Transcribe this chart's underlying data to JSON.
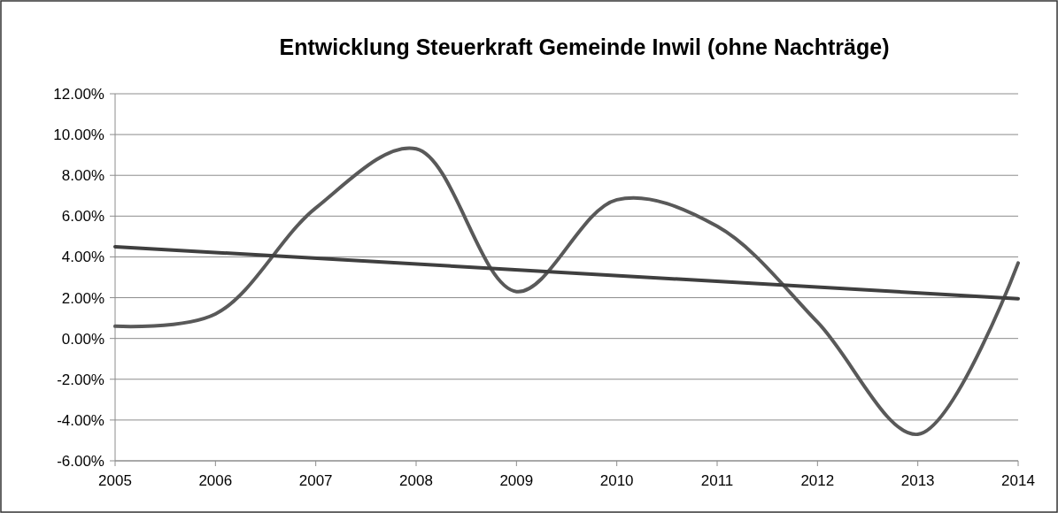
{
  "chart_data": {
    "type": "line",
    "title": "Entwicklung Steuerkraft Gemeinde Inwil (ohne Nachträge)",
    "x": [
      2005,
      2006,
      2007,
      2008,
      2009,
      2010,
      2011,
      2012,
      2013,
      2014
    ],
    "series": [
      {
        "color": "#595959",
        "values": [
          0.6,
          1.2,
          6.4,
          9.3,
          2.3,
          6.8,
          5.5,
          0.8,
          -4.7,
          3.7
        ]
      },
      {
        "type": "line",
        "color": "#3f3f3f",
        "x": [
          2005,
          2014
        ],
        "values": [
          4.5,
          1.95
        ]
      }
    ],
    "xlim": [
      2005,
      2014
    ],
    "xticks": [
      2005,
      2006,
      2007,
      2008,
      2009,
      2010,
      2011,
      2012,
      2013,
      2014
    ],
    "ylim": [
      -6,
      12
    ],
    "yticks": [
      {
        "value": -6,
        "label": "-6.00%"
      },
      {
        "value": -4,
        "label": "-4.00%"
      },
      {
        "value": -2,
        "label": "-2.00%"
      },
      {
        "value": 0,
        "label": "0.00%"
      },
      {
        "value": 2,
        "label": "2.00%"
      },
      {
        "value": 4,
        "label": "4.00%"
      },
      {
        "value": 6,
        "label": "6.00%"
      },
      {
        "value": 8,
        "label": "8.00%"
      },
      {
        "value": 10,
        "label": "10.00%"
      },
      {
        "value": 12,
        "label": "12.00%"
      }
    ],
    "grid": "y",
    "marker": "none",
    "line_style": "solid"
  }
}
